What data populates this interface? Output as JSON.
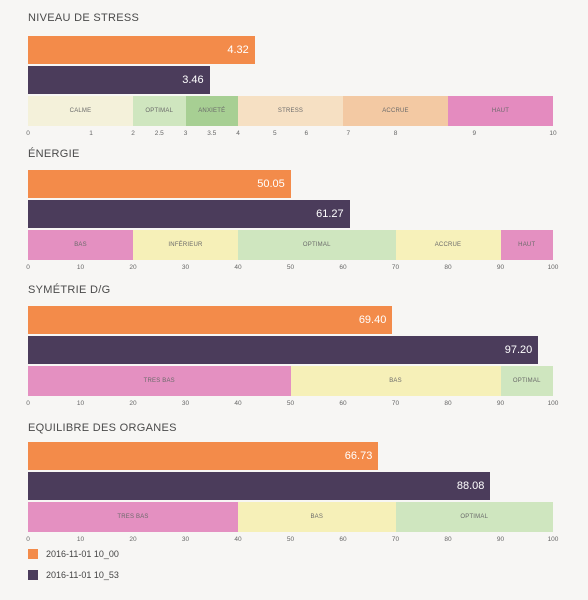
{
  "colors": {
    "series_a": "#f38b4a",
    "series_b": "#4b3c5b"
  },
  "legend": [
    {
      "label": "2016-11-01 10_00",
      "color": "#f38b4a"
    },
    {
      "label": "2016-11-01 10_53",
      "color": "#4b3c5b"
    }
  ],
  "chart_data": [
    {
      "type": "bar",
      "title": "NIVEAU DE STRESS",
      "series": [
        {
          "name": "2016-11-01 10_00",
          "value": 4.32,
          "label": "4.32"
        },
        {
          "name": "2016-11-01 10_53",
          "value": 3.46,
          "label": "3.46"
        }
      ],
      "ticks": [
        "0",
        "1",
        "2",
        "2.5",
        "3",
        "3.5",
        "4",
        "5",
        "6",
        "7",
        "8",
        "9",
        "10"
      ],
      "zones": [
        {
          "label": "CALME",
          "from": 0,
          "to": 2,
          "color": "#f4f1da"
        },
        {
          "label": "OPTIMAL",
          "from": 2,
          "to": 3,
          "color": "#cfe6bf"
        },
        {
          "label": "ANXIETÉ",
          "from": 3,
          "to": 4,
          "color": "#a7cf93"
        },
        {
          "label": "STRESS",
          "from": 4,
          "to": 6,
          "color": "#f6e0c3"
        },
        {
          "label": "ACCRUE",
          "from": 6,
          "to": 8,
          "color": "#f3c9a3"
        },
        {
          "label": "HAUT",
          "from": 8,
          "to": 10,
          "color": "#e48bbf"
        }
      ]
    },
    {
      "type": "bar",
      "title": "ÉNERGIE",
      "series": [
        {
          "name": "2016-11-01 10_00",
          "value": 50.05,
          "label": "50.05"
        },
        {
          "name": "2016-11-01 10_53",
          "value": 61.27,
          "label": "61.27"
        }
      ],
      "ticks": [
        "0",
        "10",
        "20",
        "30",
        "40",
        "50",
        "60",
        "70",
        "80",
        "90",
        "100"
      ],
      "zones": [
        {
          "label": "BAS",
          "from": 0,
          "to": 20,
          "color": "#e490c1"
        },
        {
          "label": "INFÉRIEUR",
          "from": 20,
          "to": 40,
          "color": "#f6f0b8"
        },
        {
          "label": "OPTIMAL",
          "from": 40,
          "to": 70,
          "color": "#cfe6bf"
        },
        {
          "label": "ACCRUE",
          "from": 70,
          "to": 90,
          "color": "#f7f1ba"
        },
        {
          "label": "HAUT",
          "from": 90,
          "to": 100,
          "color": "#e490c1"
        }
      ]
    },
    {
      "type": "bar",
      "title": "SYMÉTRIE D/G",
      "series": [
        {
          "name": "2016-11-01 10_00",
          "value": 69.4,
          "label": "69.40"
        },
        {
          "name": "2016-11-01 10_53",
          "value": 97.2,
          "label": "97.20"
        }
      ],
      "ticks": [
        "0",
        "10",
        "20",
        "30",
        "40",
        "50",
        "60",
        "70",
        "80",
        "90",
        "100"
      ],
      "zones": [
        {
          "label": "TRES BAS",
          "from": 0,
          "to": 50,
          "color": "#e490c1"
        },
        {
          "label": "BAS",
          "from": 50,
          "to": 90,
          "color": "#f6f0b8"
        },
        {
          "label": "OPTIMAL",
          "from": 90,
          "to": 100,
          "color": "#cfe6bf"
        }
      ]
    },
    {
      "type": "bar",
      "title": "EQUILIBRE DES ORGANES",
      "series": [
        {
          "name": "2016-11-01 10_00",
          "value": 66.73,
          "label": "66.73"
        },
        {
          "name": "2016-11-01 10_53",
          "value": 88.08,
          "label": "88.08"
        }
      ],
      "ticks": [
        "0",
        "10",
        "20",
        "30",
        "40",
        "50",
        "60",
        "70",
        "80",
        "90",
        "100"
      ],
      "zones": [
        {
          "label": "TRES BAS",
          "from": 0,
          "to": 40,
          "color": "#e490c1"
        },
        {
          "label": "BAS",
          "from": 40,
          "to": 70,
          "color": "#f6f0b8"
        },
        {
          "label": "OPTIMAL",
          "from": 70,
          "to": 100,
          "color": "#cfe6bf"
        }
      ]
    }
  ]
}
